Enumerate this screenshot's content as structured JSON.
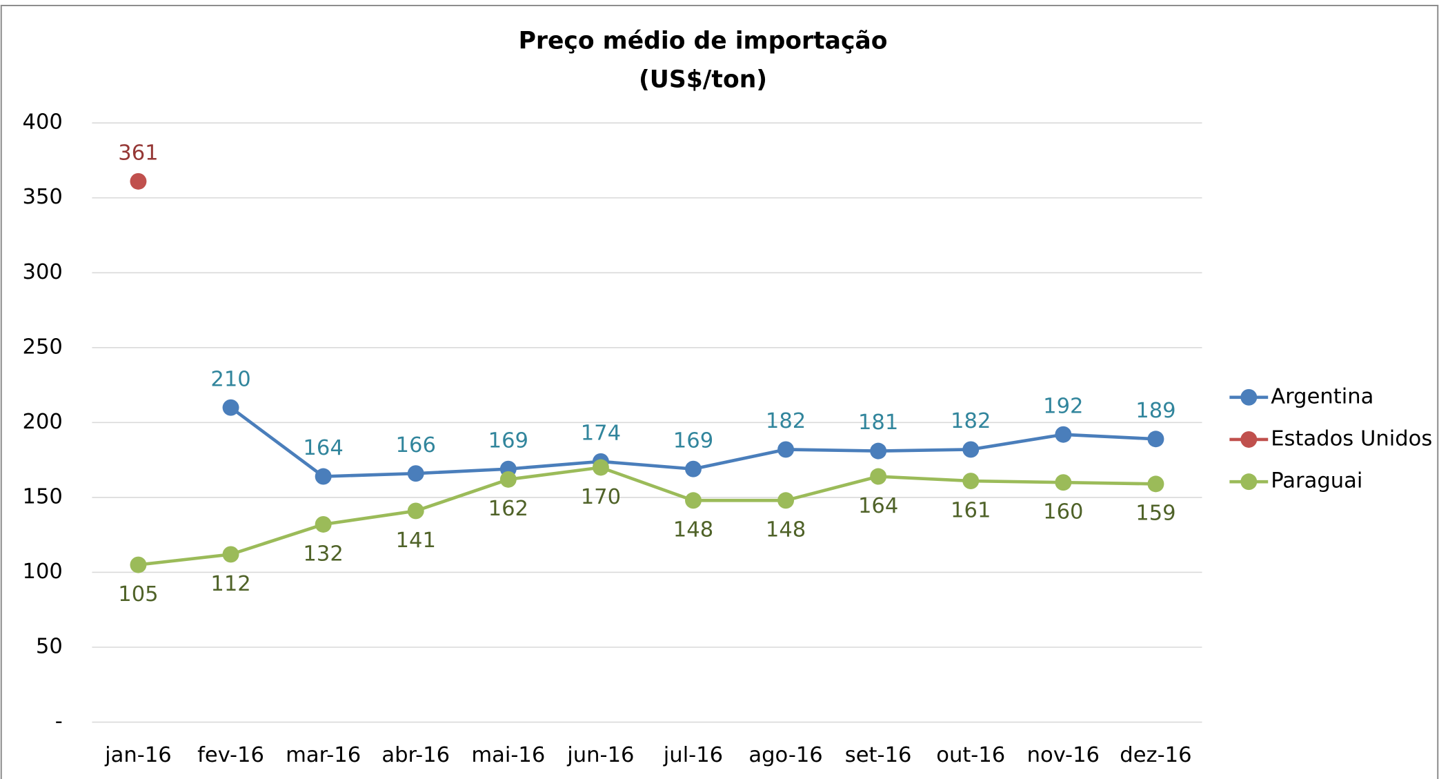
{
  "chart_data": {
    "type": "line",
    "title": "Preço médio de importação",
    "subtitle": "(US$/ton)",
    "categories": [
      "jan-16",
      "fev-16",
      "mar-16",
      "abr-16",
      "mai-16",
      "jun-16",
      "jul-16",
      "ago-16",
      "set-16",
      "out-16",
      "nov-16",
      "dez-16"
    ],
    "series": [
      {
        "name": "Argentina",
        "color": "#4a7ebb",
        "label_color": "#31859c",
        "label_position": "above",
        "values": [
          null,
          210,
          164,
          166,
          169,
          174,
          169,
          182,
          181,
          182,
          192,
          189
        ]
      },
      {
        "name": "Estados Unidos",
        "color": "#c0504d",
        "label_color": "#953735",
        "label_position": "above",
        "values": [
          361,
          null,
          null,
          null,
          null,
          null,
          null,
          null,
          null,
          null,
          null,
          null
        ]
      },
      {
        "name": "Paraguai",
        "color": "#9bbb59",
        "label_color": "#4f6228",
        "label_position": "below",
        "values": [
          105,
          112,
          132,
          141,
          162,
          170,
          148,
          148,
          164,
          161,
          160,
          159
        ]
      }
    ],
    "ylim": [
      0,
      400
    ],
    "yticks": [
      {
        "value": 0,
        "label": "-"
      },
      50,
      100,
      150,
      200,
      250,
      300,
      350,
      400
    ],
    "grid": true,
    "legend": "right"
  }
}
